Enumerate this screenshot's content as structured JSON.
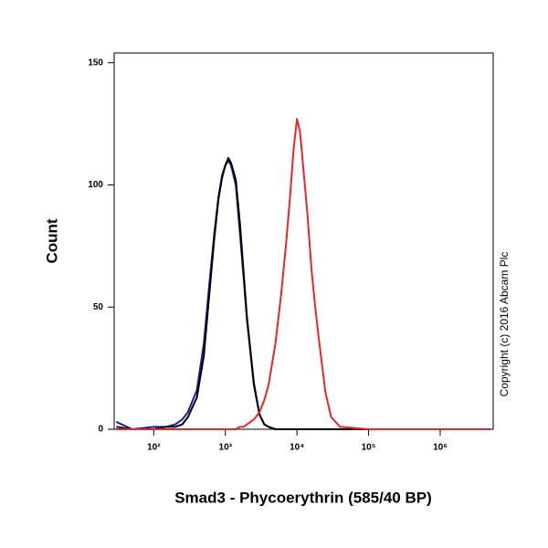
{
  "chart_data": {
    "type": "line",
    "xlabel": "Smad3 - Phycoerythrin (585/40 BP)",
    "ylabel": "Count",
    "annotation": "Copyright (c) 2016 Abcam Plc",
    "xscale": "log",
    "grid": false,
    "x": [
      30,
      50,
      100,
      150,
      200,
      250,
      300,
      400,
      500,
      600,
      700,
      800,
      900,
      1000,
      1100,
      1200,
      1400,
      1600,
      1800,
      2000,
      2500,
      3000,
      3500,
      4000,
      5000,
      6000,
      7000,
      8000,
      9000,
      10000,
      11000,
      12000,
      14000,
      16000,
      18000,
      20000,
      25000,
      30000,
      40000,
      100000,
      1000000,
      5000000
    ],
    "series": [
      {
        "color": "#1a1aa0",
        "values": [
          3,
          0,
          1,
          1,
          2,
          4,
          7,
          16,
          35,
          60,
          80,
          95,
          104,
          108,
          110,
          108,
          100,
          80,
          62,
          45,
          18,
          6,
          2,
          1,
          0,
          0,
          0,
          0,
          0,
          0,
          0,
          0,
          0,
          0,
          0,
          0,
          0,
          0,
          0,
          0,
          0,
          0
        ]
      },
      {
        "color": "#000000",
        "values": [
          1,
          0,
          0,
          1,
          1,
          2,
          5,
          13,
          30,
          56,
          78,
          94,
          103,
          108,
          111,
          109,
          102,
          84,
          64,
          46,
          19,
          6,
          2,
          1,
          0,
          0,
          0,
          0,
          0,
          0,
          0,
          0,
          0,
          0,
          0,
          0,
          0,
          0,
          0,
          0,
          0,
          0
        ]
      },
      {
        "color": "#e8262a",
        "values": [
          0,
          0,
          0,
          0,
          0,
          0,
          0,
          0,
          0,
          0,
          0,
          0,
          0,
          0,
          0,
          0,
          0,
          1,
          1,
          2,
          4,
          7,
          12,
          18,
          35,
          55,
          75,
          95,
          115,
          127,
          122,
          110,
          88,
          65,
          50,
          38,
          15,
          5,
          1,
          0,
          0,
          0
        ]
      }
    ],
    "xlim": [
      28,
      5500000
    ],
    "xticks": [
      {
        "value": 100,
        "label": "10²"
      },
      {
        "value": 1000,
        "label": "10³"
      },
      {
        "value": 10000,
        "label": "10⁴"
      },
      {
        "value": 100000,
        "label": "10⁵"
      },
      {
        "value": 1000000,
        "label": "10⁶"
      }
    ],
    "ylim": [
      0,
      154
    ],
    "yticks": [
      0,
      50,
      100,
      150
    ]
  }
}
